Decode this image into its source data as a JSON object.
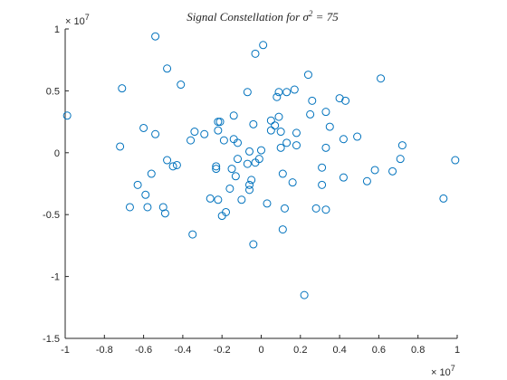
{
  "chart_data": {
    "type": "scatter",
    "title": "Signal Constellation for σ² = 75",
    "title_parts": {
      "prefix": "Signal Constellation for ",
      "symbol": "σ",
      "superscript": "2",
      "suffix": " = 75"
    },
    "xlabel": "",
    "ylabel": "",
    "xlim": [
      -1,
      1
    ],
    "ylim": [
      -1.5,
      1
    ],
    "x_ticks": [
      "-1",
      "-0.8",
      "-0.6",
      "-0.4",
      "-0.2",
      "0",
      "0.2",
      "0.4",
      "0.6",
      "0.8",
      "1"
    ],
    "y_ticks": [
      "1",
      "0.5",
      "0",
      "-0.5",
      "-1",
      "-1.5"
    ],
    "x_exponent": {
      "base": "× 10",
      "power": "7"
    },
    "y_exponent": {
      "base": "× 10",
      "power": "7"
    },
    "grid": false,
    "legend": "none",
    "marker": "circle-open",
    "color": "#0072BD",
    "points": [
      [
        -0.54,
        0.94
      ],
      [
        0.01,
        0.87
      ],
      [
        -0.03,
        0.8
      ],
      [
        -0.48,
        0.68
      ],
      [
        0.24,
        0.63
      ],
      [
        0.61,
        0.6
      ],
      [
        -0.41,
        0.55
      ],
      [
        -0.71,
        0.52
      ],
      [
        -0.07,
        0.49
      ],
      [
        0.09,
        0.49
      ],
      [
        0.17,
        0.51
      ],
      [
        0.13,
        0.49
      ],
      [
        0.4,
        0.44
      ],
      [
        0.43,
        0.42
      ],
      [
        0.26,
        0.42
      ],
      [
        0.08,
        0.45
      ],
      [
        0.33,
        0.33
      ],
      [
        0.25,
        0.31
      ],
      [
        -0.99,
        0.3
      ],
      [
        -0.14,
        0.3
      ],
      [
        0.09,
        0.29
      ],
      [
        0.05,
        0.26
      ],
      [
        -0.21,
        0.25
      ],
      [
        -0.22,
        0.25
      ],
      [
        -0.04,
        0.23
      ],
      [
        0.07,
        0.22
      ],
      [
        -0.6,
        0.2
      ],
      [
        -0.34,
        0.17
      ],
      [
        0.05,
        0.18
      ],
      [
        0.1,
        0.17
      ],
      [
        -0.22,
        0.18
      ],
      [
        0.18,
        0.16
      ],
      [
        0.35,
        0.21
      ],
      [
        -0.54,
        0.15
      ],
      [
        -0.29,
        0.15
      ],
      [
        -0.36,
        0.1
      ],
      [
        -0.19,
        0.1
      ],
      [
        -0.14,
        0.11
      ],
      [
        -0.12,
        0.08
      ],
      [
        0.13,
        0.08
      ],
      [
        0.18,
        0.06
      ],
      [
        0.42,
        0.11
      ],
      [
        0.49,
        0.13
      ],
      [
        -0.72,
        0.05
      ],
      [
        0.1,
        0.04
      ],
      [
        0.33,
        0.04
      ],
      [
        0.72,
        0.06
      ],
      [
        0.0,
        0.02
      ],
      [
        -0.06,
        0.01
      ],
      [
        -0.01,
        -0.05
      ],
      [
        -0.12,
        -0.05
      ],
      [
        -0.48,
        -0.06
      ],
      [
        0.71,
        -0.05
      ],
      [
        0.99,
        -0.06
      ],
      [
        -0.43,
        -0.1
      ],
      [
        -0.45,
        -0.11
      ],
      [
        -0.07,
        -0.09
      ],
      [
        -0.03,
        -0.08
      ],
      [
        -0.23,
        -0.11
      ],
      [
        -0.23,
        -0.13
      ],
      [
        -0.15,
        -0.13
      ],
      [
        0.31,
        -0.12
      ],
      [
        0.58,
        -0.14
      ],
      [
        0.67,
        -0.15
      ],
      [
        -0.56,
        -0.17
      ],
      [
        -0.13,
        -0.19
      ],
      [
        0.11,
        -0.17
      ],
      [
        0.42,
        -0.2
      ],
      [
        -0.05,
        -0.22
      ],
      [
        0.54,
        -0.23
      ],
      [
        0.16,
        -0.24
      ],
      [
        -0.06,
        -0.26
      ],
      [
        -0.63,
        -0.26
      ],
      [
        0.31,
        -0.26
      ],
      [
        -0.16,
        -0.29
      ],
      [
        -0.06,
        -0.3
      ],
      [
        -0.59,
        -0.34
      ],
      [
        -0.26,
        -0.37
      ],
      [
        -0.22,
        -0.38
      ],
      [
        -0.1,
        -0.38
      ],
      [
        0.03,
        -0.41
      ],
      [
        0.93,
        -0.37
      ],
      [
        -0.67,
        -0.44
      ],
      [
        -0.58,
        -0.44
      ],
      [
        -0.5,
        -0.44
      ],
      [
        0.12,
        -0.45
      ],
      [
        0.28,
        -0.45
      ],
      [
        0.33,
        -0.46
      ],
      [
        -0.18,
        -0.48
      ],
      [
        -0.49,
        -0.49
      ],
      [
        -0.2,
        -0.51
      ],
      [
        0.11,
        -0.62
      ],
      [
        -0.35,
        -0.66
      ],
      [
        -0.04,
        -0.74
      ],
      [
        0.22,
        -1.15
      ]
    ]
  }
}
